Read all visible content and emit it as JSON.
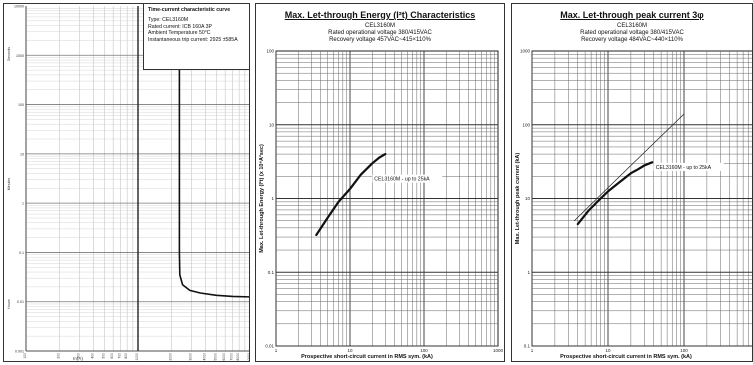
{
  "panels": {
    "time_current": {
      "info_title": "Time-current characteristic curve",
      "info_type": "Type: CEL3160M",
      "info_rated": "Rated current: ICB 160A 3P",
      "info_ambient": "Ambient Temperature 50°C",
      "info_trip": "Instantaneous trip current: 2925 ±585A",
      "xlabel": "In(A)",
      "ylabel_seconds": "Seconds",
      "ylabel_hours": "Hours",
      "ylabel_minutes": "Minutes"
    },
    "energy": {
      "title": "Max. Let-through Energy (I²t) Characteristics",
      "model": "CEL3160M",
      "voltage": "Rated operational voltage 380/415VAC",
      "recovery": "Recovery voltage  457VAC~415×110%",
      "xlabel": "Prospective short-circuit current in RMS sym. (kA)",
      "ylabel": "Max. Let-through Energy (I²t) (x 10⁶A²sec)",
      "curve_label": "CEL3160M - up to 25kA"
    },
    "peak": {
      "title": "Max. Let-through peak current  3φ",
      "model": "CEL3160M",
      "voltage": "Rated operational voltage 380/415VAC",
      "recovery": "Recovery voltage  484VAC~440×110%",
      "xlabel": "Prospective short-circuit current in RMS sym. (kA)",
      "ylabel": "Max. Let-through peak current (kA)",
      "curve_label": "CEL3160M - up to 25kA"
    }
  },
  "chart_data": [
    {
      "type": "line",
      "title": "Time-current characteristic curve",
      "xlabel": "In(A)",
      "log_x": true,
      "log_y": true,
      "xlim": [
        100,
        10000
      ],
      "ylim": [
        0.001,
        10000
      ],
      "grid": true,
      "x_ticks": [
        "100",
        "200",
        "300",
        "400",
        "500",
        "600",
        "700",
        "800",
        "1000",
        "2000",
        "3000",
        "4000",
        "5000",
        "6000",
        "7000",
        "8000",
        "10000"
      ],
      "y_ticks": [
        "0.001",
        "0.01",
        "0.1",
        "1",
        "10",
        "100",
        "1000",
        "10000"
      ],
      "series": [
        {
          "points": [
            [
              2340,
              4000
            ],
            [
              2340,
              30
            ],
            [
              2340,
              0.1
            ],
            [
              2360,
              0.035
            ],
            [
              2500,
              0.022
            ],
            [
              2900,
              0.017
            ],
            [
              3600,
              0.015
            ],
            [
              5000,
              0.0135
            ],
            [
              7000,
              0.0128
            ],
            [
              10000,
              0.0125
            ]
          ]
        }
      ]
    },
    {
      "type": "line",
      "title": "Max. Let-through Energy (I²t) Characteristics",
      "xlabel": "Prospective short-circuit current in RMS sym. (kA)",
      "ylabel": "Max. Let-through Energy (I²t) (x 10⁶A²sec)",
      "log_x": true,
      "log_y": true,
      "xlim": [
        1,
        1000
      ],
      "ylim": [
        0.01,
        100
      ],
      "grid": true,
      "x_ticks": [
        "1",
        "10",
        "100",
        "1000"
      ],
      "y_ticks": [
        "0.01",
        "0.1",
        "1",
        "10",
        "100"
      ],
      "series": [
        {
          "name": "CEL3160M - up to 25kA",
          "points": [
            [
              3.5,
              0.32
            ],
            [
              5,
              0.55
            ],
            [
              7,
              0.9
            ],
            [
              10,
              1.35
            ],
            [
              14,
              2.1
            ],
            [
              20,
              3.0
            ],
            [
              25,
              3.6
            ],
            [
              30,
              4.0
            ]
          ]
        }
      ]
    },
    {
      "type": "line",
      "title": "Max. Let-through peak current  3φ",
      "xlabel": "Prospective short-circuit current in RMS sym. (kA)",
      "ylabel": "Max. Let-through peak current (kA)",
      "log_x": true,
      "log_y": true,
      "xlim": [
        1,
        1000
      ],
      "ylim": [
        0.1,
        1000
      ],
      "grid": true,
      "x_ticks": [
        "1",
        "10",
        "100",
        "1000"
      ],
      "y_ticks": [
        "0.1",
        "1",
        "10",
        "100",
        "1000"
      ],
      "series": [
        {
          "name": "CEL3160M - up to 25kA",
          "points": [
            [
              4,
              4.5
            ],
            [
              5.5,
              6.8
            ],
            [
              8,
              10
            ],
            [
              10,
              12.5
            ],
            [
              14,
              16.5
            ],
            [
              20,
              22
            ],
            [
              25,
              25
            ],
            [
              30,
              28
            ],
            [
              38,
              31
            ]
          ]
        },
        {
          "points": [
            [
              3.6,
              5
            ],
            [
              10,
              14
            ],
            [
              100,
              140
            ]
          ],
          "style": "thin"
        }
      ]
    }
  ]
}
